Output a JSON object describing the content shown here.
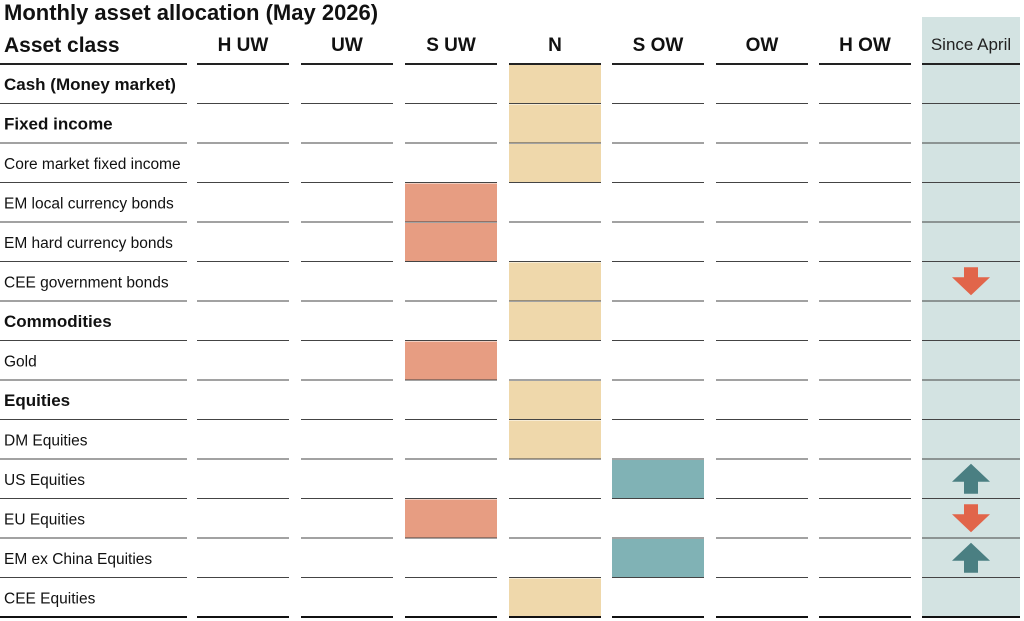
{
  "chart_data": {
    "type": "table",
    "title": "Monthly asset allocation (May 2026)",
    "header_label": "Asset class",
    "columns": [
      "H UW",
      "UW",
      "S UW",
      "N",
      "S OW",
      "OW",
      "H OW"
    ],
    "change_column": "Since April",
    "rows": [
      {
        "name": "Cash (Money market)",
        "bold": true,
        "position": "N",
        "change": ""
      },
      {
        "name": "Fixed income",
        "bold": true,
        "position": "N",
        "change": ""
      },
      {
        "name": "Core market fixed income",
        "bold": false,
        "position": "N",
        "change": ""
      },
      {
        "name": "EM local currency bonds",
        "bold": false,
        "position": "S UW",
        "change": ""
      },
      {
        "name": "EM hard currency bonds",
        "bold": false,
        "position": "S UW",
        "change": ""
      },
      {
        "name": "CEE government bonds",
        "bold": false,
        "position": "N",
        "change": "down"
      },
      {
        "name": "Commodities",
        "bold": true,
        "position": "N",
        "change": ""
      },
      {
        "name": "Gold",
        "bold": false,
        "position": "S UW",
        "change": ""
      },
      {
        "name": "Equities",
        "bold": true,
        "position": "N",
        "change": ""
      },
      {
        "name": "DM Equities",
        "bold": false,
        "position": "N",
        "change": ""
      },
      {
        "name": "US Equities",
        "bold": false,
        "position": "S OW",
        "change": "up"
      },
      {
        "name": "EU Equities",
        "bold": false,
        "position": "S UW",
        "change": "down"
      },
      {
        "name": "EM ex China Equities",
        "bold": false,
        "position": "S OW",
        "change": "up"
      },
      {
        "name": "CEE Equities",
        "bold": false,
        "position": "N",
        "change": ""
      }
    ]
  },
  "colors": {
    "neutral": "#efd8ab",
    "underweight": "#e79d82",
    "overweight": "#80b2b5",
    "since_bg": "#d3e3e2",
    "arrow_down": "#e1654a",
    "arrow_up": "#4a7f82",
    "rule": "#333333"
  }
}
